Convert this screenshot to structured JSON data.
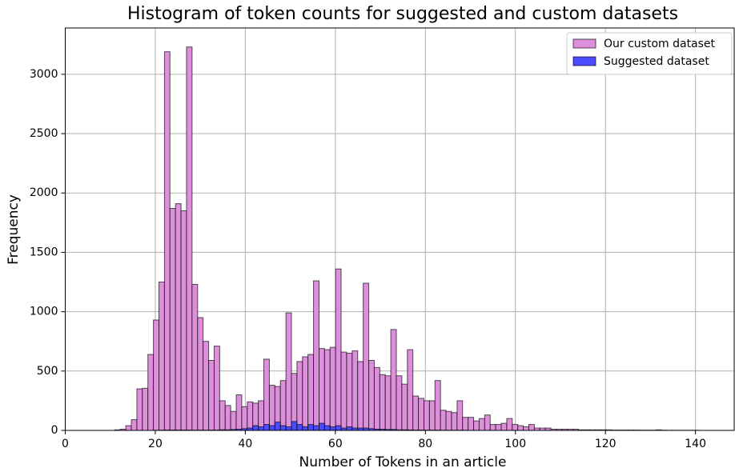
{
  "chart_data": {
    "type": "histogram",
    "title": "Histogram of token counts for suggested and custom datasets",
    "xlabel": "Number of Tokens in an article",
    "ylabel": "Frequency",
    "bins": [
      11,
      12.23,
      13.45,
      14.68,
      15.91,
      17.13,
      18.36,
      19.58,
      20.81,
      22.04,
      23.26,
      24.49,
      25.72,
      26.94,
      28.17,
      29.4,
      30.62,
      31.85,
      33.08,
      34.3,
      35.53,
      36.75,
      37.98,
      39.21,
      40.43,
      41.66,
      42.89,
      44.11,
      45.34,
      46.57,
      47.79,
      49.02,
      50.25,
      51.47,
      52.7,
      53.92,
      55.15,
      56.38,
      57.6,
      58.83,
      60.06,
      61.28,
      62.51,
      63.74,
      64.96,
      66.19,
      67.42,
      68.64,
      69.87,
      71.09,
      72.32,
      73.55,
      74.77,
      76.0,
      77.23,
      78.45,
      79.68,
      80.91,
      82.13,
      83.36,
      84.58,
      85.81,
      87.04,
      88.26,
      89.49,
      90.72,
      91.94,
      93.17,
      94.4,
      95.62,
      96.85,
      98.08,
      99.3,
      100.53,
      101.75,
      102.98,
      104.21,
      105.43,
      106.66,
      107.89,
      109.11,
      110.34,
      111.57,
      112.79,
      114.02,
      115.25,
      116.47,
      117.7,
      118.92,
      120.15,
      121.38,
      122.6,
      123.83,
      125.06,
      126.28,
      127.51,
      128.74,
      129.96,
      131.19,
      132.42,
      133.64,
      134.87,
      136.09,
      137.32,
      138.55,
      139.77,
      141.0
    ],
    "series": [
      {
        "name": "Our custom dataset",
        "color": "#dd8fdb",
        "values": [
          5,
          10,
          40,
          90,
          350,
          355,
          640,
          930,
          1250,
          3190,
          1870,
          1910,
          1850,
          3230,
          1230,
          950,
          750,
          590,
          710,
          250,
          210,
          160,
          300,
          200,
          240,
          230,
          250,
          600,
          380,
          370,
          420,
          990,
          480,
          580,
          620,
          640,
          1260,
          690,
          680,
          700,
          1360,
          660,
          650,
          670,
          580,
          1240,
          590,
          530,
          470,
          460,
          850,
          460,
          390,
          680,
          290,
          270,
          250,
          250,
          420,
          170,
          160,
          150,
          250,
          110,
          110,
          80,
          100,
          130,
          50,
          50,
          60,
          100,
          50,
          40,
          30,
          50,
          20,
          20,
          20,
          10,
          10,
          10,
          10,
          10,
          5,
          5,
          5,
          5,
          5,
          5,
          3,
          3,
          3,
          3,
          3,
          2,
          2,
          2,
          5,
          2,
          1,
          1,
          1,
          1,
          1,
          1
        ]
      },
      {
        "name": "Suggested dataset",
        "color": "#4b4bff",
        "values": [
          0,
          0,
          0,
          0,
          0,
          0,
          0,
          1,
          2,
          3,
          3,
          3,
          3,
          3,
          2,
          2,
          2,
          3,
          3,
          5,
          5,
          8,
          10,
          15,
          20,
          40,
          30,
          50,
          40,
          70,
          40,
          30,
          75,
          50,
          30,
          50,
          40,
          60,
          40,
          30,
          40,
          20,
          30,
          20,
          20,
          20,
          15,
          10,
          10,
          8,
          8,
          5,
          5,
          4,
          3,
          3,
          2,
          2,
          2,
          1,
          1,
          1,
          1,
          1,
          0,
          0,
          0,
          0,
          0,
          0,
          0,
          0,
          0,
          0,
          0,
          0,
          0,
          0,
          0,
          0,
          0,
          0,
          0,
          0,
          0,
          0,
          0,
          0,
          0,
          0,
          0,
          0,
          0,
          0,
          0,
          0,
          0,
          0,
          0,
          0,
          0,
          0,
          0,
          0,
          0,
          0
        ]
      }
    ],
    "xlim": [
      0,
      148.6
    ],
    "xticks": [
      0,
      20,
      40,
      60,
      80,
      100,
      120,
      140
    ],
    "ylim": [
      0,
      3390
    ],
    "yticks": [
      0,
      500,
      1000,
      1500,
      2000,
      2500,
      3000
    ],
    "grid": true,
    "legend": "upper right"
  }
}
